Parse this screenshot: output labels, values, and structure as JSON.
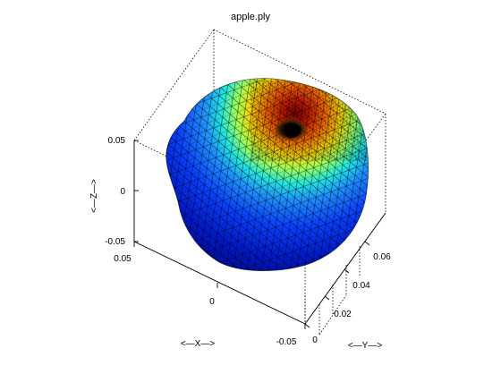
{
  "title": "apple.ply",
  "axes": {
    "xlabel": "<—X—>",
    "ylabel": "<—Y—>",
    "zlabel": "<—Z—>",
    "x_ticks": [
      "0.05",
      "0",
      "-0.05"
    ],
    "y_ticks": [
      "0",
      "0.02",
      "0.04",
      "0.06"
    ],
    "z_ticks": [
      "0.05",
      "0",
      "-0.05"
    ]
  },
  "colormap": "jet"
}
